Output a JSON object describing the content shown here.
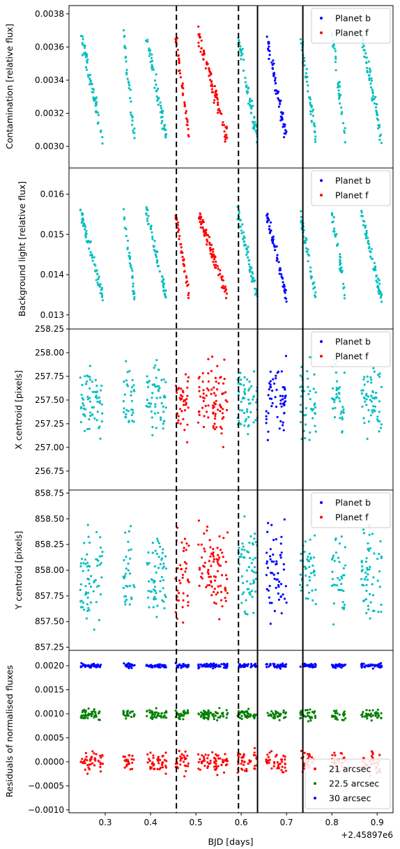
{
  "chart_data": {
    "type": "scatter",
    "shared_x": {
      "label": "BJD [days]",
      "offset_label": "+2.45897e6",
      "offset": 2458970,
      "lim": [
        0.22,
        0.935
      ],
      "ticks": [
        0.3,
        0.4,
        0.5,
        0.6,
        0.7,
        0.8,
        0.9
      ],
      "tick_labels": [
        "0.3",
        "0.4",
        "0.5",
        "0.6",
        "0.7",
        "0.8",
        "0.9"
      ]
    },
    "transit_lines": [
      {
        "planet": "f",
        "style": "dashed",
        "x": [
          0.457,
          0.594
        ]
      },
      {
        "planet": "b",
        "style": "solid",
        "x": [
          0.636,
          0.736
        ]
      }
    ],
    "point_colors": {
      "cyan": "#00bfbf",
      "red": "#ff0000",
      "blue": "#0000ff",
      "green": "#008000"
    },
    "segments": [
      {
        "start": 0.245,
        "end": 0.295,
        "planet": null
      },
      {
        "start": 0.34,
        "end": 0.365,
        "planet": null
      },
      {
        "start": 0.39,
        "end": 0.435,
        "planet": null
      },
      {
        "start": 0.455,
        "end": 0.485,
        "planet": "f"
      },
      {
        "start": 0.505,
        "end": 0.57,
        "planet": "f"
      },
      {
        "start": 0.592,
        "end": 0.636,
        "planet": null
      },
      {
        "start": 0.655,
        "end": 0.7,
        "planet": "b"
      },
      {
        "start": 0.73,
        "end": 0.765,
        "planet": null
      },
      {
        "start": 0.8,
        "end": 0.83,
        "planet": null
      },
      {
        "start": 0.865,
        "end": 0.91,
        "planet": null
      }
    ],
    "panels": [
      {
        "id": "contamination",
        "ylabel": "Contamination [relative flux]",
        "ylim": [
          0.00287,
          0.00385
        ],
        "yticks": [
          0.003,
          0.0032,
          0.0034,
          0.0036,
          0.0038
        ],
        "ytick_labels": [
          "0.0030",
          "0.0032",
          "0.0034",
          "0.0036",
          "0.0038"
        ],
        "yrange_data": [
          0.00293,
          0.00368
        ],
        "legend": [
          "Planet b",
          "Planet f"
        ],
        "legend_loc": "upper right"
      },
      {
        "id": "background",
        "ylabel": "Background light [relative flux]",
        "ylim": [
          0.01265,
          0.01665
        ],
        "yticks": [
          0.013,
          0.014,
          0.015,
          0.016
        ],
        "ytick_labels": [
          "0.013",
          "0.014",
          "0.015",
          "0.016"
        ],
        "yrange_data": [
          0.01305,
          0.01555
        ],
        "legend": [
          "Planet b",
          "Planet f"
        ],
        "legend_loc": "upper right"
      },
      {
        "id": "xcentroid",
        "ylabel": "X centroid [pixels]",
        "ylim": [
          256.55,
          258.25
        ],
        "yticks": [
          256.75,
          257.0,
          257.25,
          257.5,
          257.75,
          258.0,
          258.25
        ],
        "ytick_labels": [
          "256.75",
          "257.00",
          "257.25",
          "257.50",
          "257.75",
          "258.00",
          "258.25"
        ],
        "yrange_data": [
          256.98,
          258.02
        ],
        "legend": [
          "Planet b",
          "Planet f"
        ],
        "legend_loc": "upper right"
      },
      {
        "id": "ycentroid",
        "ylabel": "Y centroid [pixels]",
        "ylim": [
          857.22,
          858.78
        ],
        "yticks": [
          857.25,
          857.5,
          857.75,
          858.0,
          858.25,
          858.5,
          858.75
        ],
        "ytick_labels": [
          "857.25",
          "857.50",
          "857.75",
          "858.00",
          "858.25",
          "858.50",
          "858.75"
        ],
        "yrange_data": [
          857.4,
          858.55
        ],
        "legend": [
          "Planet b",
          "Planet f"
        ],
        "legend_loc": "upper right"
      },
      {
        "id": "residuals",
        "ylabel": "Residuals of normalised fluxes",
        "ylim": [
          -0.00106,
          0.00232
        ],
        "yticks": [
          -0.001,
          -0.0005,
          0.0,
          0.0005,
          0.001,
          0.0015,
          0.002
        ],
        "ytick_labels": [
          "−0.0010",
          "−0.0005",
          "0.0000",
          "0.0005",
          "0.0010",
          "0.0015",
          "0.0020"
        ],
        "series": [
          {
            "name": "21 arcsec",
            "color": "#ff0000",
            "center": 0.0,
            "spread": 0.00022
          },
          {
            "name": "22.5 arcsec",
            "color": "#008000",
            "center": 0.00098,
            "spread": 0.0001
          },
          {
            "name": "30 arcsec",
            "color": "#0000ff",
            "center": 0.002,
            "spread": 4e-05
          }
        ],
        "legend": [
          "21 arcsec",
          "22.5 arcsec",
          "30 arcsec"
        ],
        "legend_loc": "lower right"
      }
    ]
  }
}
